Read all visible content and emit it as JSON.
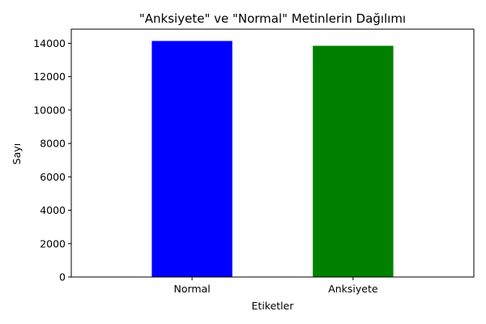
{
  "chart_data": {
    "type": "bar",
    "title": "\"Anksiyete\" ve \"Normal\" Metinlerin Dağılımı",
    "xlabel": "Etiketler",
    "ylabel": "Sayı",
    "categories": [
      "Normal",
      "Anksiyete"
    ],
    "values": [
      14140,
      13850
    ],
    "colors": [
      "#0000ff",
      "#008000"
    ],
    "ylim": [
      0,
      14846
    ],
    "yticks": [
      0,
      2000,
      4000,
      6000,
      8000,
      10000,
      12000,
      14000
    ],
    "grid": false,
    "legend": false
  }
}
